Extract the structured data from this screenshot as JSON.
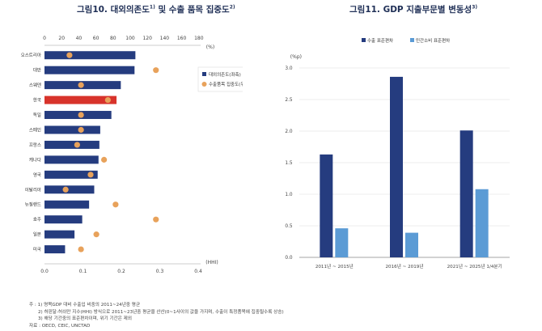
{
  "left_title": {
    "text": "그림10. 대외의존도",
    "sup1": "1)",
    "mid": " 및 수출 품목 집중도",
    "sup2": "2)"
  },
  "right_title": {
    "text": "그림11. GDP 지출부문별 변동성",
    "sup": "3)"
  },
  "notes": [
    "주 : 1) 명목GDP 대비 수출입 비중의 2011~24년중 평균",
    "2) 허핀달-허쉬만 지수(HHI) 방식으로 2011~23년중 평균을 산산(0~1사이의 값을 가지며, 수출이 특정품목에 집중될수록 상승)",
    "3) 해당 기간중의 표준편차이며, 위기 기간은 제외",
    "자료 : OECD, CEIC, UNCTAD"
  ],
  "chart_data": [
    {
      "type": "bar",
      "orientation": "horizontal",
      "title": "그림10. 대외의존도 및 수출 품목 집중도",
      "categories": [
        "오스트리아",
        "대만",
        "스웨덴",
        "한국",
        "독일",
        "스페인",
        "프랑스",
        "캐나다",
        "영국",
        "이탈리아",
        "뉴질랜드",
        "호주",
        "일본",
        "미국"
      ],
      "highlight_category": "한국",
      "top_axis": {
        "unit": "(%)",
        "ticks": [
          0,
          20,
          40,
          60,
          80,
          100,
          120,
          140,
          160,
          180
        ],
        "range": [
          0,
          180
        ]
      },
      "bottom_axis": {
        "unit": "(HHI)",
        "ticks": [
          "0.0",
          "0.1",
          "0.2",
          "0.3",
          "0.4"
        ],
        "range": [
          0,
          0.4
        ]
      },
      "series": [
        {
          "name": "대외의존도(좌축)",
          "axis": "top",
          "color": "#253c7f",
          "highlight_color": "#d8332b",
          "values": [
            106,
            105,
            89,
            84,
            78,
            65,
            64,
            63,
            62,
            58,
            52,
            44,
            35,
            24
          ]
        },
        {
          "name": "수출품목 집중도(우축)",
          "axis": "bottom",
          "color": "#e8a25b",
          "values": [
            0.065,
            0.29,
            0.095,
            0.165,
            0.095,
            0.095,
            0.085,
            0.155,
            0.12,
            0.055,
            0.185,
            0.29,
            0.135,
            0.095
          ]
        }
      ],
      "legend": {
        "position": "right"
      }
    },
    {
      "type": "bar",
      "title": "그림11. GDP 지출부문별 변동성",
      "ylabel": "(%p)",
      "ylim": [
        0,
        3.0
      ],
      "yticks": [
        "0.0",
        "0.5",
        "1.0",
        "1.5",
        "2.0",
        "2.5",
        "3.0"
      ],
      "categories": [
        "2011년 ~ 2015년",
        "2016년 ~ 2019년",
        "2021년 ~ 2025년 1/4분기"
      ],
      "series": [
        {
          "name": "수출 표준편차",
          "color": "#253c7f",
          "values": [
            1.63,
            2.86,
            2.01
          ]
        },
        {
          "name": "민간소비 표준편차",
          "color": "#5b9bd5",
          "values": [
            0.46,
            0.39,
            1.08
          ]
        }
      ],
      "legend": {
        "position": "top"
      }
    }
  ]
}
